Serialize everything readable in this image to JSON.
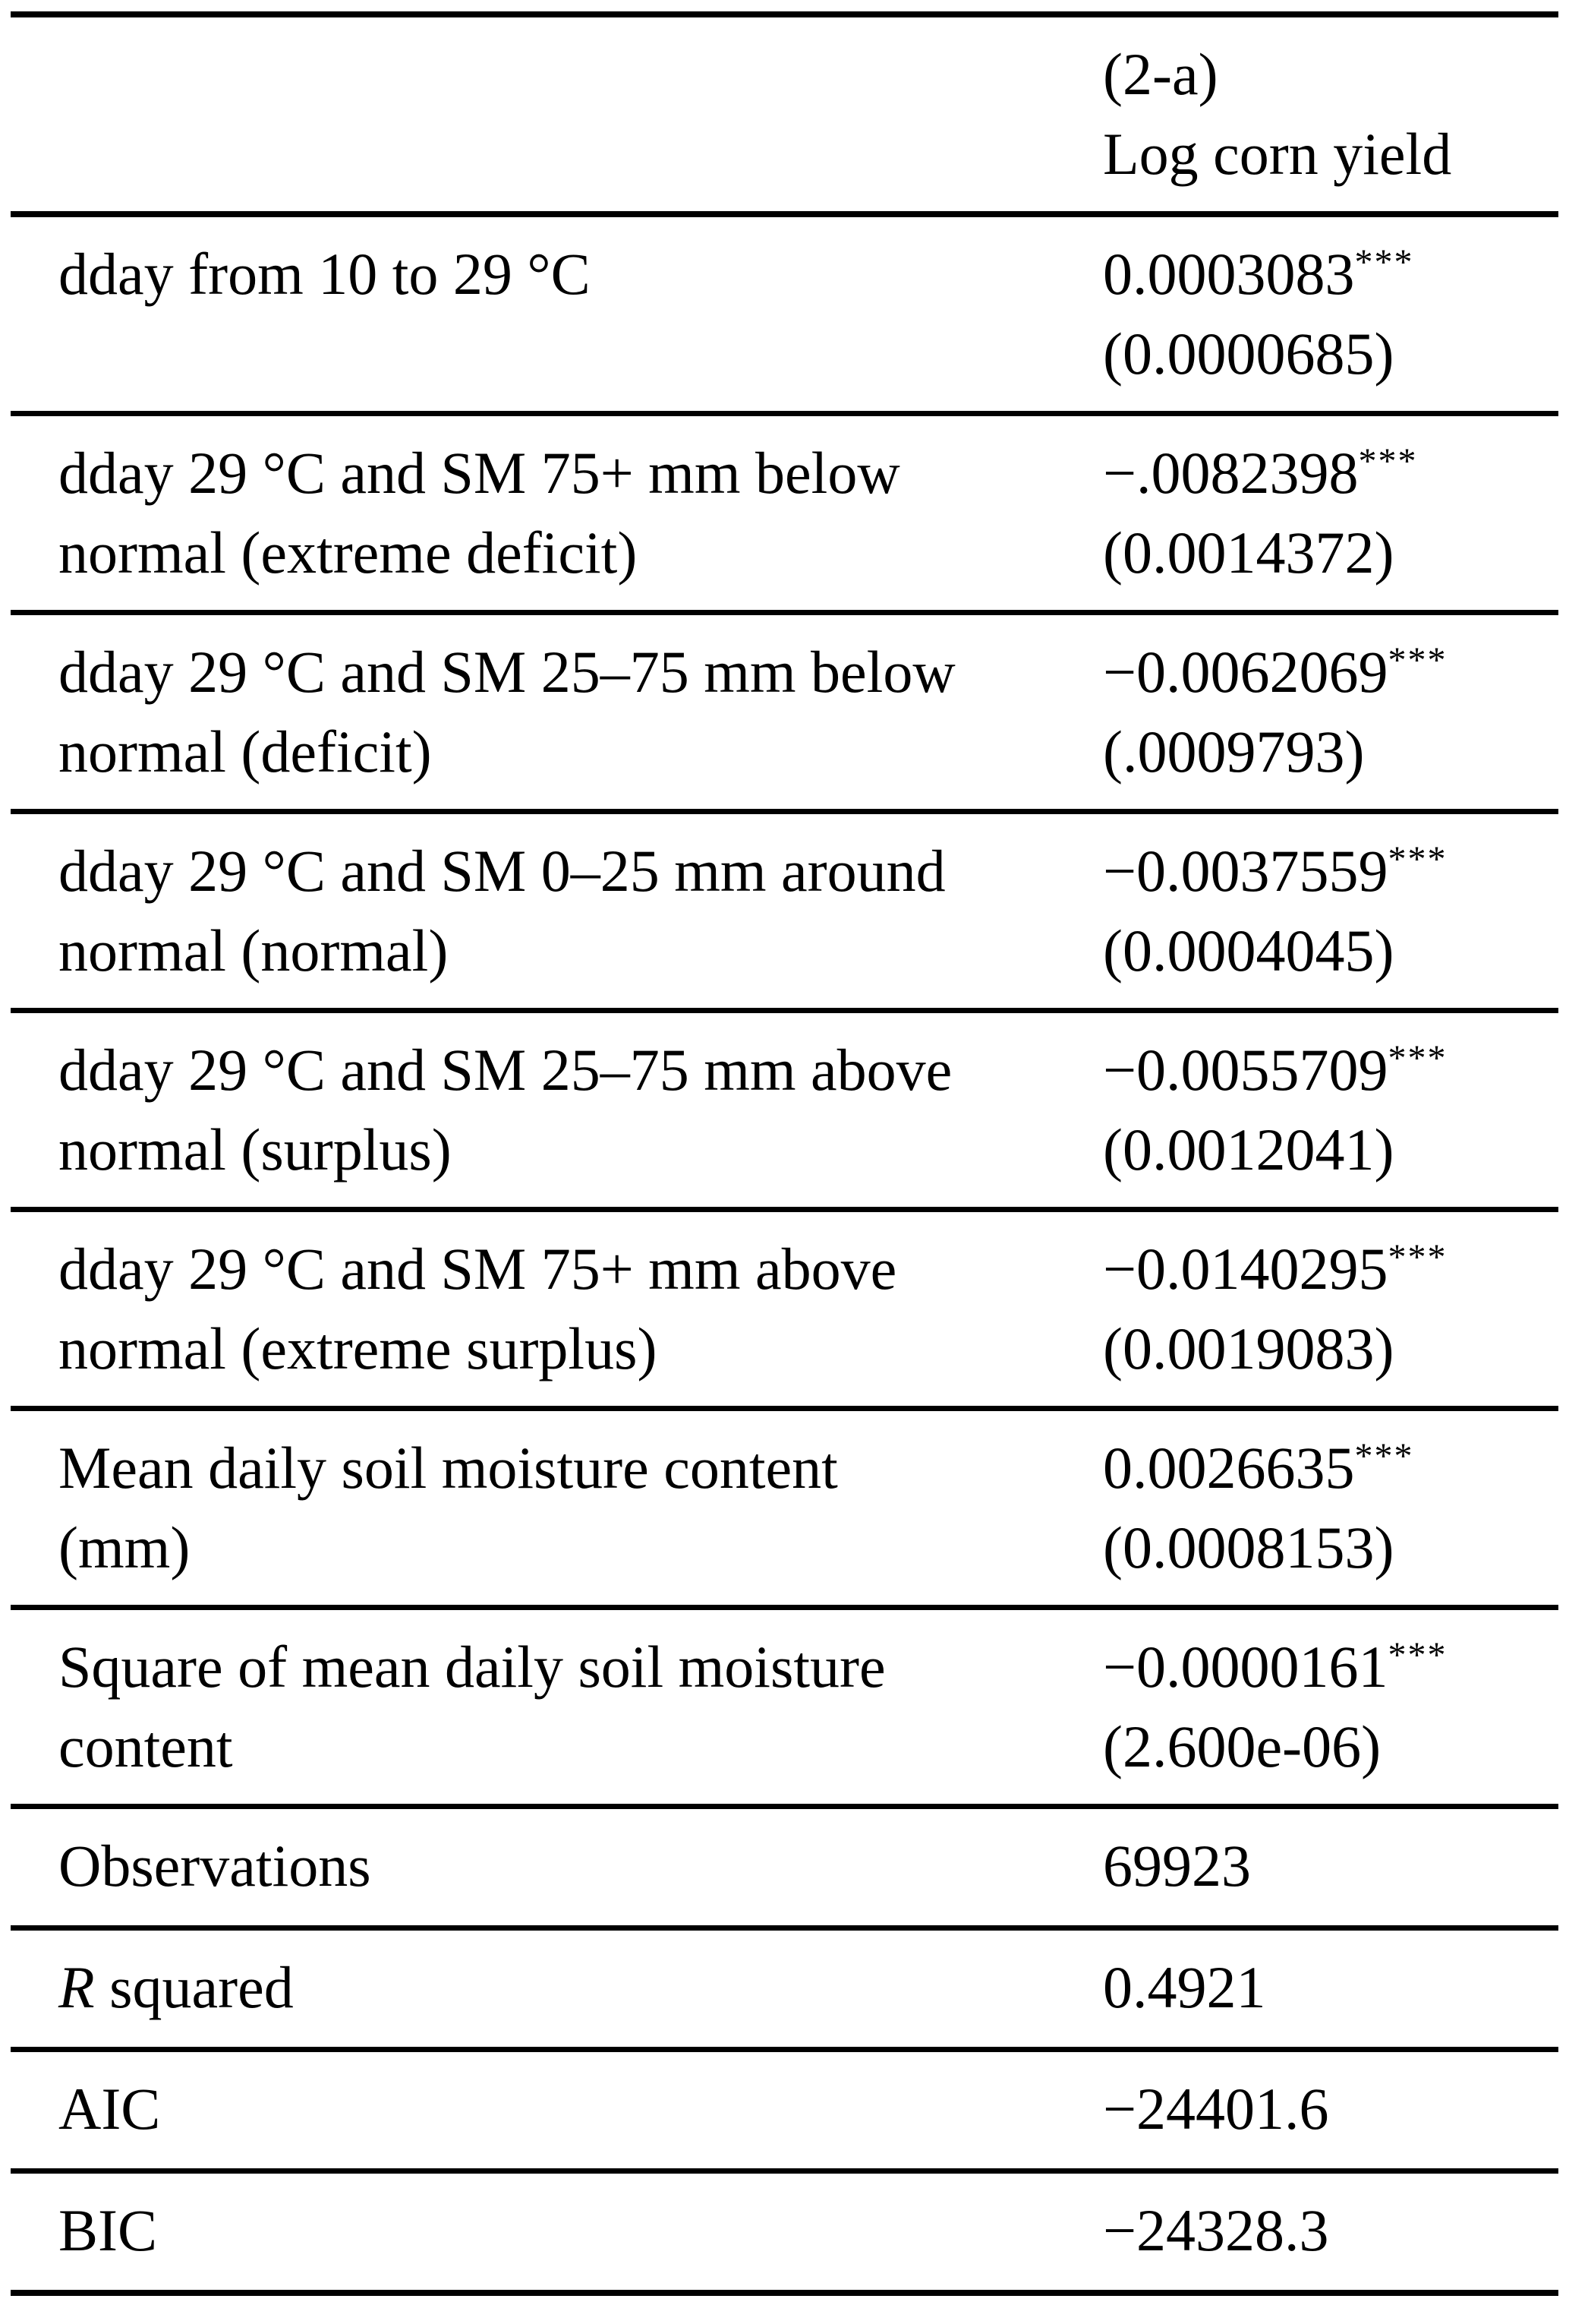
{
  "table": {
    "header": {
      "model_id": "(2-a)",
      "dependent_variable": "Log corn yield"
    },
    "coefficient_rows": [
      {
        "label_line1": "dday from 10 to 29 °C",
        "label_line2": "",
        "coefficient": "0.0003083",
        "significance": "***",
        "std_error": "(0.0000685)"
      },
      {
        "label_line1": "dday 29 °C and SM 75+ mm below",
        "label_line2": "normal (extreme deficit)",
        "coefficient": "−.0082398",
        "significance": "***",
        "std_error": "(0.0014372)"
      },
      {
        "label_line1": "dday 29 °C and SM 25–75 mm below",
        "label_line2": "normal (deficit)",
        "coefficient": "−0.0062069",
        "significance": "***",
        "std_error": "(.0009793)"
      },
      {
        "label_line1": "dday 29 °C and SM 0–25 mm around",
        "label_line2": "normal (normal)",
        "coefficient": "−0.0037559",
        "significance": "***",
        "std_error": "(0.0004045)"
      },
      {
        "label_line1": "dday 29 °C and SM 25–75 mm above",
        "label_line2": "normal (surplus)",
        "coefficient": "−0.0055709",
        "significance": "***",
        "std_error": "(0.0012041)"
      },
      {
        "label_line1": "dday 29 °C and SM 75+ mm above",
        "label_line2": "normal (extreme surplus)",
        "coefficient": "−0.0140295",
        "significance": "***",
        "std_error": "(0.0019083)"
      },
      {
        "label_line1": "Mean daily soil moisture content",
        "label_line2": "(mm)",
        "coefficient": "0.0026635",
        "significance": "***",
        "std_error": "(0.0008153)"
      },
      {
        "label_line1": "Square of mean daily soil moisture",
        "label_line2": "content",
        "coefficient": "−0.0000161",
        "significance": "***",
        "std_error": "(2.600e-06)"
      }
    ],
    "stat_rows": [
      {
        "label_italic": "",
        "label": "Observations",
        "value": "69923"
      },
      {
        "label_italic": "R",
        "label": " squared",
        "value": "0.4921"
      },
      {
        "label_italic": "",
        "label": "AIC",
        "value": "−24401.6"
      },
      {
        "label_italic": "",
        "label": "BIC",
        "value": "−24328.3"
      }
    ]
  }
}
